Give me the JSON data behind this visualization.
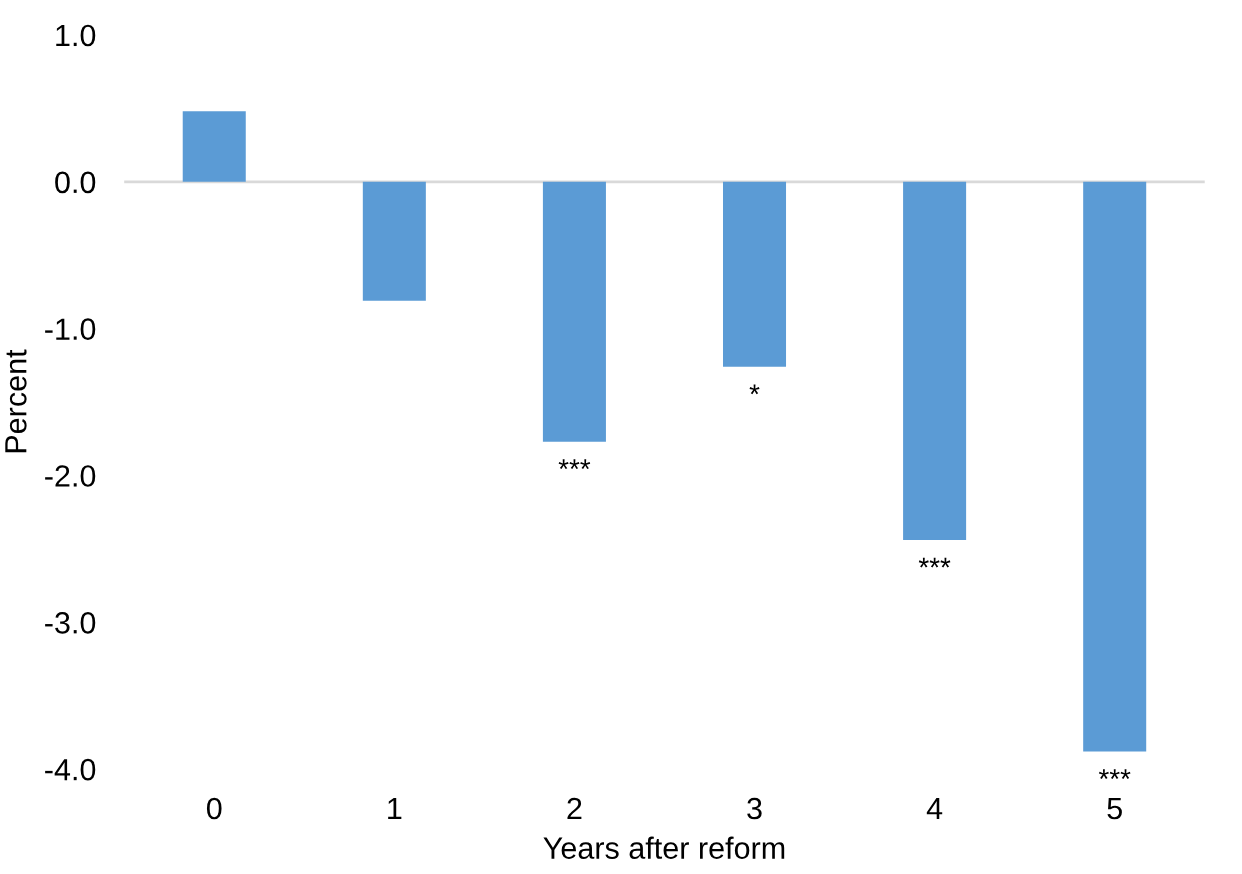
{
  "chart_data": {
    "type": "bar",
    "xlabel": "Years after reform",
    "ylabel": "Percent",
    "categories": [
      "0",
      "1",
      "2",
      "3",
      "4",
      "5"
    ],
    "values": [
      0.48,
      -0.81,
      -1.77,
      -1.26,
      -2.44,
      -3.88
    ],
    "color": "#5b9bd5",
    "ylim": [
      -4.0,
      1.0
    ],
    "yticks": [
      {
        "value": 1.0,
        "label": "1.0"
      },
      {
        "value": 0.0,
        "label": "0.0"
      },
      {
        "value": -1.0,
        "label": "-1.0"
      },
      {
        "value": -2.0,
        "label": "-2.0"
      },
      {
        "value": -3.0,
        "label": "-3.0"
      },
      {
        "value": -4.0,
        "label": "-4.0"
      }
    ],
    "grid": false,
    "ref_lines": [
      {
        "axis": "y",
        "value": 0.0,
        "color": "#d9d9d9"
      }
    ],
    "annotations": [
      {
        "text": "***",
        "x": "2",
        "y": -1.77
      },
      {
        "text": "*",
        "x": "3",
        "y": -1.26
      },
      {
        "text": "***",
        "x": "4",
        "y": -2.44
      },
      {
        "text": "***",
        "x": "5",
        "y": -3.88
      }
    ]
  }
}
